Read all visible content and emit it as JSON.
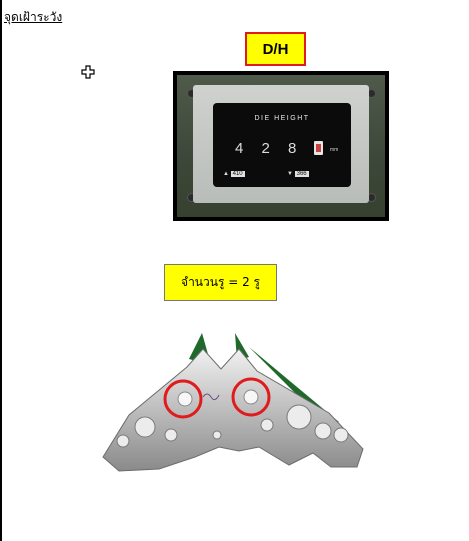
{
  "heading": "จุดเฝ้าระวัง",
  "dh_label": "D/H",
  "gauge": {
    "title": "DIE HEIGHT",
    "digits": "4 2 8 ·",
    "unit": "mm",
    "lower_limit": "410",
    "upper_limit": "366"
  },
  "hole_note": "จำนวนรู = 2 รู",
  "colors": {
    "label_fill": "#ffff00",
    "highlight_red": "#e01b1b"
  },
  "icons": [
    "move-cursor-icon"
  ]
}
